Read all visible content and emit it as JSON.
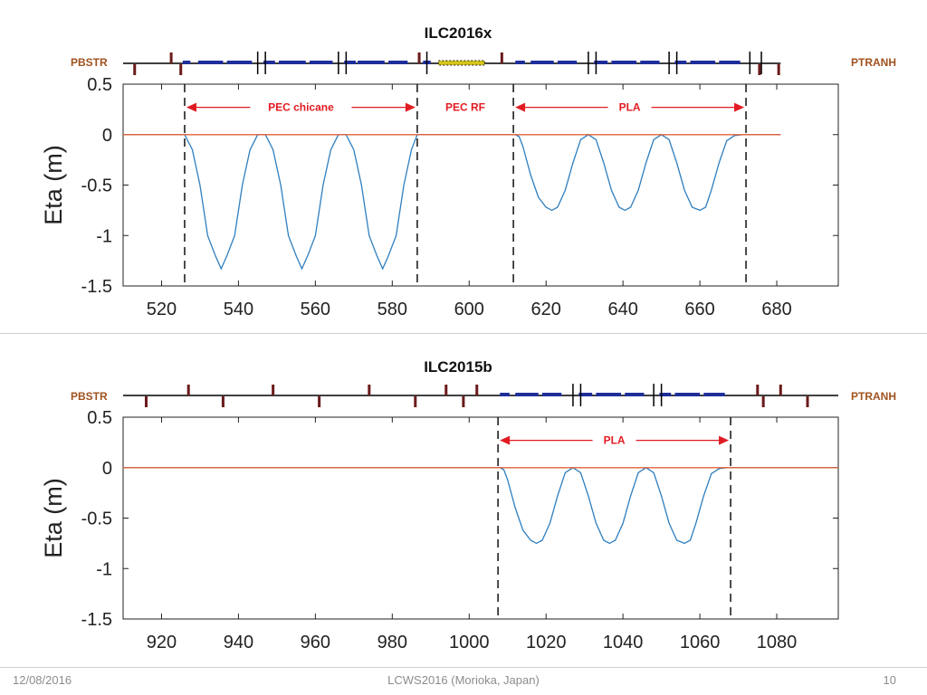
{
  "footer": {
    "date": "12/08/2016",
    "center": "LCWS2016 (Morioka, Japan)",
    "page": "10"
  },
  "colors": {
    "eta_line": "#2f7fbf",
    "zero_line": "#e0623a",
    "arrow": "#e11b22",
    "label_red": "#e11b22",
    "label_brown": "#a0521e",
    "quad": "#1e2e9a",
    "corrector": "#6b1a1a",
    "rf": "#d4c51a"
  },
  "chart_data": [
    {
      "type": "line",
      "title": "ILC2016x",
      "ylabel": "Eta (m)",
      "xlabel": "",
      "xlim": [
        510,
        696
      ],
      "ylim": [
        -1.5,
        0.5
      ],
      "xticks": [
        520,
        540,
        560,
        580,
        600,
        620,
        640,
        660,
        680
      ],
      "yticks": [
        0.5,
        0,
        -0.5,
        -1,
        -1.5
      ],
      "ytick_labels": [
        "0.5",
        "0",
        "-0.5",
        "-1",
        "-1.5"
      ],
      "lattice_left_label": "PBSTR",
      "lattice_right_label": "PTRANH",
      "lattice_start": 510,
      "lattice_end": 681,
      "grid": false,
      "series": [
        {
          "role": "eta",
          "x": [
            510,
            526,
            528,
            530,
            532,
            534,
            535.5,
            537,
            539,
            541,
            543,
            545,
            547,
            549,
            551,
            553,
            555,
            556.5,
            558,
            560,
            562,
            564,
            566,
            568,
            570,
            572,
            574,
            576,
            577.5,
            579,
            581,
            583,
            585,
            586.5,
            612,
            613,
            614,
            616,
            618,
            620,
            621.5,
            623,
            625,
            627,
            629,
            631,
            633,
            635,
            637,
            639,
            640.5,
            642,
            644,
            646,
            648,
            650,
            652,
            654,
            656,
            658,
            660,
            661.5,
            663,
            665,
            667,
            669,
            671,
            672,
            681
          ],
          "y": [
            0,
            0,
            -0.15,
            -0.5,
            -1.0,
            -1.2,
            -1.33,
            -1.2,
            -1.0,
            -0.5,
            -0.15,
            0,
            0,
            -0.15,
            -0.5,
            -1.0,
            -1.2,
            -1.33,
            -1.2,
            -1.0,
            -0.5,
            -0.15,
            0,
            0,
            -0.15,
            -0.5,
            -1.0,
            -1.2,
            -1.33,
            -1.2,
            -1.0,
            -0.5,
            -0.15,
            0,
            0,
            -0.02,
            -0.12,
            -0.4,
            -0.62,
            -0.72,
            -0.75,
            -0.72,
            -0.55,
            -0.28,
            -0.05,
            0,
            -0.05,
            -0.28,
            -0.55,
            -0.72,
            -0.75,
            -0.72,
            -0.55,
            -0.28,
            -0.05,
            0,
            -0.05,
            -0.28,
            -0.55,
            -0.72,
            -0.75,
            -0.72,
            -0.55,
            -0.28,
            -0.06,
            -0.01,
            0,
            0,
            0
          ]
        },
        {
          "role": "zero",
          "x": [
            510,
            681
          ],
          "y": [
            0,
            0
          ]
        }
      ],
      "vlines": [
        526,
        586.5,
        611.5,
        672
      ],
      "annotations": [
        {
          "text": "PEC chicane",
          "x_from": 526,
          "x_to": 586.5,
          "arrow": true,
          "y": 0.27
        },
        {
          "text": "PEC RF",
          "x_from": 586.5,
          "x_to": 611.5,
          "arrow": false,
          "y": 0.27
        },
        {
          "text": "PLA",
          "x_from": 611.5,
          "x_to": 672,
          "arrow": true,
          "y": 0.27
        }
      ],
      "lattice": {
        "quads": [
          [
            525.5,
            527.5
          ],
          [
            529.5,
            536
          ],
          [
            537,
            543.5
          ],
          [
            546.5,
            549.5
          ],
          [
            550.5,
            557.5
          ],
          [
            558.5,
            564.5
          ],
          [
            567.5,
            570.5
          ],
          [
            571,
            578
          ],
          [
            579,
            584
          ],
          [
            588,
            590
          ],
          [
            612,
            614.5
          ],
          [
            616,
            622
          ],
          [
            623,
            628
          ],
          [
            632.5,
            636
          ],
          [
            637,
            643.5
          ],
          [
            644.5,
            649.5
          ],
          [
            653.5,
            656.5
          ],
          [
            657.5,
            664
          ],
          [
            665,
            670.5
          ]
        ],
        "rf": [
          [
            592,
            604
          ]
        ],
        "bends_up": [
          545,
          547,
          566,
          568,
          589,
          631,
          633,
          652,
          654,
          673,
          676
        ],
        "correctors_up": [
          522.5,
          587,
          608.5
        ],
        "correctors_down": [
          513,
          525,
          675.5,
          680.5
        ]
      }
    },
    {
      "type": "line",
      "title": "ILC2015b",
      "ylabel": "Eta (m)",
      "xlabel": "",
      "xlim": [
        910,
        1096
      ],
      "ylim": [
        -1.5,
        0.5
      ],
      "xticks": [
        920,
        940,
        960,
        980,
        1000,
        1020,
        1040,
        1060,
        1080
      ],
      "yticks": [
        0.5,
        0,
        -0.5,
        -1,
        -1.5
      ],
      "ytick_labels": [
        "0.5",
        "0",
        "-0.5",
        "-1",
        "-1.5"
      ],
      "lattice_left_label": "PBSTR",
      "lattice_right_label": "PTRANH",
      "lattice_start": 910,
      "lattice_end": 1096,
      "grid": false,
      "series": [
        {
          "role": "eta",
          "x": [
            910,
            1008,
            1009,
            1010,
            1012,
            1014,
            1016,
            1017.5,
            1019,
            1021,
            1023,
            1025,
            1027,
            1029,
            1031,
            1033,
            1035,
            1036.5,
            1038,
            1040,
            1042,
            1044,
            1046,
            1048,
            1050,
            1052,
            1054,
            1056,
            1057.5,
            1059,
            1061,
            1063,
            1065,
            1067,
            1068,
            1096
          ],
          "y": [
            0,
            0,
            -0.02,
            -0.12,
            -0.4,
            -0.62,
            -0.72,
            -0.75,
            -0.72,
            -0.55,
            -0.28,
            -0.05,
            0,
            -0.05,
            -0.28,
            -0.55,
            -0.72,
            -0.75,
            -0.72,
            -0.55,
            -0.28,
            -0.05,
            0,
            -0.05,
            -0.28,
            -0.55,
            -0.72,
            -0.75,
            -0.72,
            -0.55,
            -0.28,
            -0.06,
            -0.01,
            0,
            0,
            0
          ]
        },
        {
          "role": "zero",
          "x": [
            910,
            1096
          ],
          "y": [
            0,
            0
          ]
        }
      ],
      "vlines": [
        1007.5,
        1068
      ],
      "annotations": [
        {
          "text": "PLA",
          "x_from": 1007.5,
          "x_to": 1068,
          "arrow": true,
          "y": 0.27
        }
      ],
      "lattice": {
        "quads": [
          [
            1008,
            1010.5
          ],
          [
            1012,
            1018
          ],
          [
            1019,
            1024
          ],
          [
            1028.5,
            1032
          ],
          [
            1033,
            1039.5
          ],
          [
            1040.5,
            1045.5
          ],
          [
            1049.5,
            1052.5
          ],
          [
            1053.5,
            1060
          ],
          [
            1061,
            1066.5
          ]
        ],
        "rf": [],
        "bends_up": [
          1027,
          1029,
          1048,
          1050
        ],
        "correctors_up": [
          927,
          949,
          974,
          994,
          1002,
          1075,
          1081
        ],
        "correctors_down": [
          916,
          936,
          961,
          986,
          998.5,
          1076.5,
          1088
        ]
      }
    }
  ]
}
